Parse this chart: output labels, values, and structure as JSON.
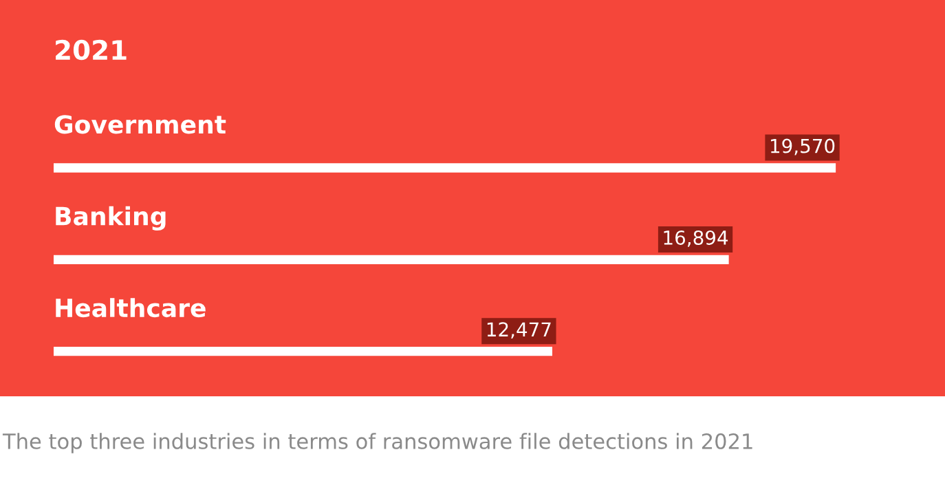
{
  "chart_data": {
    "type": "bar",
    "orientation": "horizontal",
    "title": "2021",
    "categories": [
      "Government",
      "Banking",
      "Healthcare"
    ],
    "values": [
      19570,
      16894,
      12477
    ],
    "value_labels": [
      "19,570",
      "16,894",
      "12,477"
    ],
    "color": "#ffffff",
    "annotations": [
      "The top three industries in terms of ransomware file detections in 2021"
    ]
  }
}
